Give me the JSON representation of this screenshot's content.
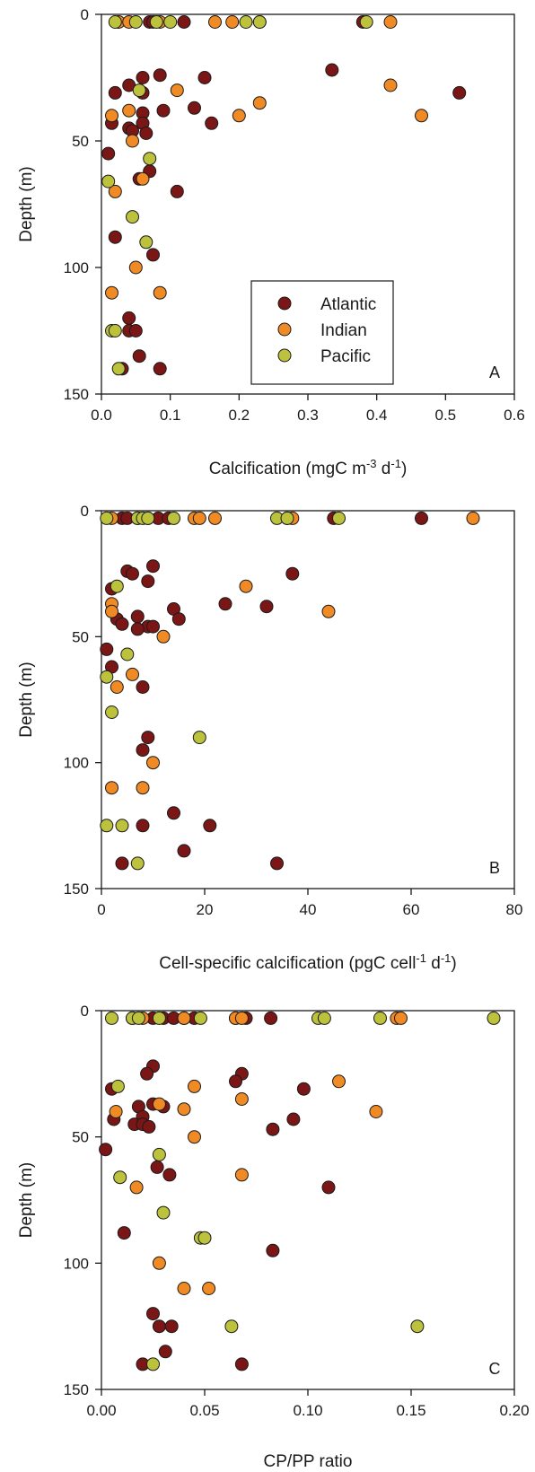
{
  "colors": {
    "atlantic": "#7b1616",
    "indian": "#f08a24",
    "pacific": "#bcc23c"
  },
  "legend": {
    "items": [
      "Atlantic",
      "Indian",
      "Pacific"
    ]
  },
  "chart_data": [
    {
      "type": "scatter",
      "panel": "A",
      "xlabel": "Calcification (mgC m-3 d-1)",
      "ylabel": "Depth (m)",
      "xlim": [
        0,
        0.6
      ],
      "ylim": [
        0,
        150
      ],
      "y_inverted": true,
      "xticks": [
        "0.0",
        "0.1",
        "0.2",
        "0.3",
        "0.4",
        "0.5",
        "0.6"
      ],
      "yticks": [
        "0",
        "50",
        "100",
        "150"
      ],
      "legend_position": "center",
      "series": [
        {
          "name": "Atlantic",
          "points": [
            [
              0.07,
              3
            ],
            [
              0.075,
              3
            ],
            [
              0.12,
              3
            ],
            [
              0.23,
              3
            ],
            [
              0.38,
              3
            ],
            [
              0.335,
              22
            ],
            [
              0.52,
              31
            ],
            [
              0.15,
              25
            ],
            [
              0.085,
              24
            ],
            [
              0.06,
              25
            ],
            [
              0.02,
              31
            ],
            [
              0.04,
              28
            ],
            [
              0.06,
              31
            ],
            [
              0.135,
              37
            ],
            [
              0.09,
              38
            ],
            [
              0.06,
              39
            ],
            [
              0.16,
              43
            ],
            [
              0.015,
              43
            ],
            [
              0.06,
              43
            ],
            [
              0.04,
              45
            ],
            [
              0.045,
              46
            ],
            [
              0.065,
              47
            ],
            [
              0.01,
              55
            ],
            [
              0.07,
              62
            ],
            [
              0.055,
              65
            ],
            [
              0.11,
              70
            ],
            [
              0.02,
              88
            ],
            [
              0.075,
              95
            ],
            [
              0.04,
              120
            ],
            [
              0.04,
              125
            ],
            [
              0.05,
              125
            ],
            [
              0.055,
              135
            ],
            [
              0.085,
              140
            ],
            [
              0.03,
              140
            ]
          ]
        },
        {
          "name": "Indian",
          "points": [
            [
              0.025,
              3
            ],
            [
              0.04,
              3
            ],
            [
              0.085,
              3
            ],
            [
              0.165,
              3
            ],
            [
              0.19,
              3
            ],
            [
              0.42,
              3
            ],
            [
              0.42,
              28
            ],
            [
              0.11,
              30
            ],
            [
              0.23,
              35
            ],
            [
              0.04,
              38
            ],
            [
              0.2,
              40
            ],
            [
              0.465,
              40
            ],
            [
              0.015,
              40
            ],
            [
              0.045,
              50
            ],
            [
              0.06,
              65
            ],
            [
              0.02,
              70
            ],
            [
              0.05,
              100
            ],
            [
              0.015,
              110
            ],
            [
              0.085,
              110
            ]
          ]
        },
        {
          "name": "Pacific",
          "points": [
            [
              0.02,
              3
            ],
            [
              0.05,
              3
            ],
            [
              0.08,
              3
            ],
            [
              0.1,
              3
            ],
            [
              0.21,
              3
            ],
            [
              0.23,
              3
            ],
            [
              0.385,
              3
            ],
            [
              0.055,
              30
            ],
            [
              0.07,
              57
            ],
            [
              0.01,
              66
            ],
            [
              0.045,
              80
            ],
            [
              0.065,
              90
            ],
            [
              0.015,
              125
            ],
            [
              0.02,
              125
            ],
            [
              0.025,
              140
            ]
          ]
        }
      ]
    },
    {
      "type": "scatter",
      "panel": "B",
      "xlabel": "Cell-specific calcification (pgC cell-1 d-1)",
      "ylabel": "Depth (m)",
      "xlim": [
        0,
        80
      ],
      "ylim": [
        0,
        150
      ],
      "y_inverted": true,
      "xticks": [
        "0",
        "20",
        "40",
        "60",
        "80"
      ],
      "yticks": [
        "0",
        "50",
        "100",
        "150"
      ],
      "series": [
        {
          "name": "Atlantic",
          "points": [
            [
              4,
              3
            ],
            [
              5,
              3
            ],
            [
              9,
              3
            ],
            [
              11,
              3
            ],
            [
              13,
              3
            ],
            [
              36,
              3
            ],
            [
              45,
              3
            ],
            [
              62,
              3
            ],
            [
              10,
              22
            ],
            [
              37,
              25
            ],
            [
              5,
              24
            ],
            [
              6,
              25
            ],
            [
              9,
              28
            ],
            [
              2,
              31
            ],
            [
              24,
              37
            ],
            [
              32,
              38
            ],
            [
              14,
              39
            ],
            [
              7,
              42
            ],
            [
              15,
              43
            ],
            [
              3,
              43
            ],
            [
              4,
              45
            ],
            [
              9,
              46
            ],
            [
              10,
              46
            ],
            [
              7,
              47
            ],
            [
              1,
              55
            ],
            [
              2,
              62
            ],
            [
              8,
              70
            ],
            [
              9,
              90
            ],
            [
              8,
              95
            ],
            [
              14,
              120
            ],
            [
              8,
              125
            ],
            [
              21,
              125
            ],
            [
              16,
              135
            ],
            [
              4,
              140
            ],
            [
              34,
              140
            ]
          ]
        },
        {
          "name": "Indian",
          "points": [
            [
              2,
              3
            ],
            [
              7,
              3
            ],
            [
              18,
              3
            ],
            [
              19,
              3
            ],
            [
              22,
              3
            ],
            [
              37,
              3
            ],
            [
              72,
              3
            ],
            [
              28,
              30
            ],
            [
              2,
              37
            ],
            [
              2,
              40
            ],
            [
              44,
              40
            ],
            [
              12,
              50
            ],
            [
              6,
              65
            ],
            [
              3,
              70
            ],
            [
              10,
              100
            ],
            [
              2,
              110
            ],
            [
              8,
              110
            ]
          ]
        },
        {
          "name": "Pacific",
          "points": [
            [
              1,
              3
            ],
            [
              7,
              3
            ],
            [
              8,
              3
            ],
            [
              9,
              3
            ],
            [
              14,
              3
            ],
            [
              34,
              3
            ],
            [
              36,
              3
            ],
            [
              46,
              3
            ],
            [
              3,
              30
            ],
            [
              5,
              57
            ],
            [
              1,
              66
            ],
            [
              2,
              80
            ],
            [
              19,
              90
            ],
            [
              1,
              125
            ],
            [
              4,
              125
            ],
            [
              7,
              140
            ]
          ]
        }
      ]
    },
    {
      "type": "scatter",
      "panel": "C",
      "xlabel": "CP/PP ratio",
      "ylabel": "Depth (m)",
      "xlim": [
        0,
        0.2
      ],
      "ylim": [
        0,
        150
      ],
      "y_inverted": true,
      "xticks": [
        "0.00",
        "0.05",
        "0.10",
        "0.15",
        "0.20"
      ],
      "yticks": [
        "0",
        "50",
        "100",
        "150"
      ],
      "series": [
        {
          "name": "Atlantic",
          "points": [
            [
              0.015,
              3
            ],
            [
              0.025,
              3
            ],
            [
              0.03,
              3
            ],
            [
              0.035,
              3
            ],
            [
              0.04,
              3
            ],
            [
              0.045,
              3
            ],
            [
              0.065,
              3
            ],
            [
              0.07,
              3
            ],
            [
              0.082,
              3
            ],
            [
              0.025,
              22
            ],
            [
              0.068,
              25
            ],
            [
              0.022,
              25
            ],
            [
              0.065,
              28
            ],
            [
              0.098,
              31
            ],
            [
              0.005,
              31
            ],
            [
              0.025,
              37
            ],
            [
              0.018,
              38
            ],
            [
              0.03,
              38
            ],
            [
              0.02,
              42
            ],
            [
              0.093,
              43
            ],
            [
              0.006,
              43
            ],
            [
              0.016,
              45
            ],
            [
              0.02,
              45
            ],
            [
              0.023,
              46
            ],
            [
              0.083,
              47
            ],
            [
              0.002,
              55
            ],
            [
              0.027,
              62
            ],
            [
              0.033,
              65
            ],
            [
              0.11,
              70
            ],
            [
              0.011,
              88
            ],
            [
              0.083,
              95
            ],
            [
              0.025,
              120
            ],
            [
              0.028,
              125
            ],
            [
              0.034,
              125
            ],
            [
              0.031,
              135
            ],
            [
              0.02,
              140
            ],
            [
              0.068,
              140
            ]
          ]
        },
        {
          "name": "Indian",
          "points": [
            [
              0.02,
              3
            ],
            [
              0.04,
              3
            ],
            [
              0.065,
              3
            ],
            [
              0.068,
              3
            ],
            [
              0.143,
              3
            ],
            [
              0.145,
              3
            ],
            [
              0.115,
              28
            ],
            [
              0.045,
              30
            ],
            [
              0.068,
              35
            ],
            [
              0.028,
              37
            ],
            [
              0.04,
              39
            ],
            [
              0.133,
              40
            ],
            [
              0.007,
              40
            ],
            [
              0.045,
              50
            ],
            [
              0.068,
              65
            ],
            [
              0.017,
              70
            ],
            [
              0.028,
              100
            ],
            [
              0.04,
              110
            ],
            [
              0.052,
              110
            ]
          ]
        },
        {
          "name": "Pacific",
          "points": [
            [
              0.005,
              3
            ],
            [
              0.015,
              3
            ],
            [
              0.018,
              3
            ],
            [
              0.028,
              3
            ],
            [
              0.048,
              3
            ],
            [
              0.105,
              3
            ],
            [
              0.108,
              3
            ],
            [
              0.135,
              3
            ],
            [
              0.19,
              3
            ],
            [
              0.008,
              30
            ],
            [
              0.028,
              57
            ],
            [
              0.009,
              66
            ],
            [
              0.03,
              80
            ],
            [
              0.048,
              90
            ],
            [
              0.05,
              90
            ],
            [
              0.063,
              125
            ],
            [
              0.153,
              125
            ],
            [
              0.025,
              140
            ]
          ]
        }
      ]
    }
  ]
}
